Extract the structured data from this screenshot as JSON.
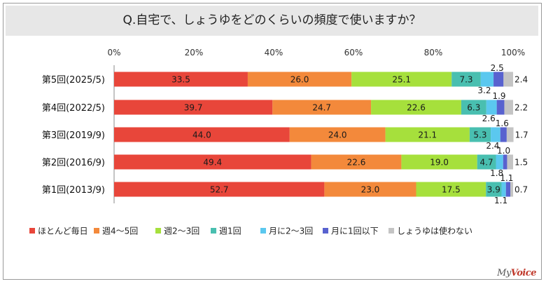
{
  "chart_data": {
    "type": "bar",
    "orientation": "horizontal",
    "stacked": true,
    "title": "Q.自宅で、しょうゆをどのくらいの頻度で使いますか？",
    "xlim": [
      0,
      100
    ],
    "x_ticks": [
      "0%",
      "20%",
      "40%",
      "60%",
      "80%",
      "100%"
    ],
    "categories": [
      "第5回(2025/5)",
      "第4回(2022/5)",
      "第3回(2019/9)",
      "第2回(2016/9)",
      "第1回(2013/9)"
    ],
    "series": [
      {
        "name": "ほとんど毎日",
        "color": "#e8463a",
        "values": [
          33.5,
          39.7,
          44.0,
          49.4,
          52.7
        ]
      },
      {
        "name": "週4～5回",
        "color": "#f3893b",
        "values": [
          26.0,
          24.7,
          24.0,
          22.6,
          23.0
        ]
      },
      {
        "name": "週2～3回",
        "color": "#a6e03c",
        "values": [
          25.1,
          22.6,
          21.1,
          19.0,
          17.5
        ]
      },
      {
        "name": "週1回",
        "color": "#49bfb0",
        "values": [
          7.3,
          6.3,
          5.3,
          4.7,
          3.9
        ]
      },
      {
        "name": "月に2～3回",
        "color": "#5bc8ef",
        "values": [
          3.2,
          2.6,
          2.4,
          1.8,
          1.1
        ]
      },
      {
        "name": "月に1回以下",
        "color": "#5862cf",
        "values": [
          2.5,
          1.9,
          1.6,
          1.0,
          1.1
        ]
      },
      {
        "name": "しょうゆは使わない",
        "color": "#c4c4c4",
        "values": [
          2.4,
          2.2,
          1.7,
          1.5,
          0.7
        ]
      }
    ],
    "legend_position": "bottom"
  },
  "brand": {
    "prefix": "My",
    "suffix": "Voice"
  }
}
